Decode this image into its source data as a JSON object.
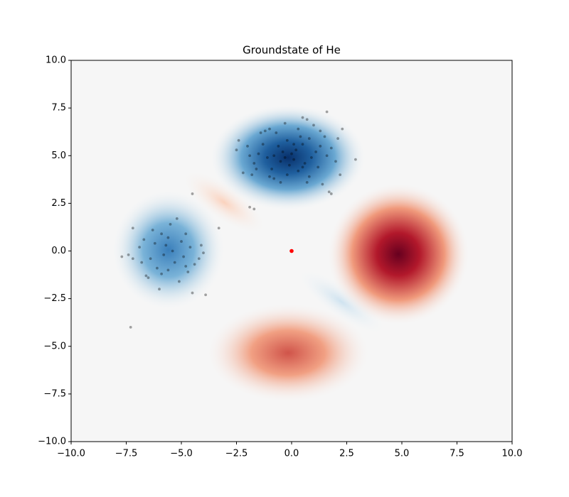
{
  "chart_data": {
    "type": "scatter",
    "title": "Groundstate of He",
    "xlim": [
      -10,
      10
    ],
    "ylim": [
      -10,
      10
    ],
    "xticks": [
      {
        "value": -10,
        "label": "−10.0"
      },
      {
        "value": -7.5,
        "label": "−7.5"
      },
      {
        "value": -5,
        "label": "−5.0"
      },
      {
        "value": -2.5,
        "label": "−2.5"
      },
      {
        "value": 0,
        "label": "0.0"
      },
      2.5,
      {
        "value": 5,
        "label": "5.0"
      },
      7.5,
      {
        "value": 10,
        "label": "10.0"
      }
    ],
    "yticks": [
      {
        "value": -10,
        "label": "−10.0"
      },
      {
        "value": -7.5,
        "label": "−7.5"
      },
      {
        "value": -5,
        "label": "−5.0"
      },
      {
        "value": -2.5,
        "label": "−2.5"
      },
      {
        "value": 0,
        "label": "0.0"
      },
      2.5,
      {
        "value": 5,
        "label": "5.0"
      },
      7.5,
      {
        "value": 10,
        "label": "10.0"
      }
    ],
    "series": [
      {
        "color": "#000000",
        "x": [
          -2.4,
          -2.5,
          -2.2,
          -1.8,
          -1.7,
          -1.5,
          -1.4,
          -1.2,
          -1.0,
          -1.3,
          -1.1,
          -0.9,
          -0.8,
          -0.6,
          -0.5,
          -0.4,
          -0.3,
          -0.2,
          -0.1,
          0.0,
          0.1,
          0.2,
          0.3,
          0.4,
          0.5,
          0.6,
          0.7,
          0.8,
          0.9,
          1.0,
          1.1,
          1.2,
          1.3,
          1.4,
          1.5,
          1.6,
          1.7,
          1.8,
          2.0,
          2.1,
          -0.7,
          -1.6,
          -0.2,
          0.3,
          -1.9,
          -2.0,
          0.8,
          -0.5,
          0.1,
          -0.8,
          0.5,
          -1.0,
          1.3,
          -0.3,
          0.7,
          2.9,
          2.3,
          2.2,
          1.6,
          0.5,
          1.8,
          -4.5,
          -1.9,
          -1.7,
          -3.3,
          -7.7,
          -7.4,
          -7.2,
          -7.2,
          -6.9,
          -6.7,
          -6.6,
          -6.4,
          -6.3,
          -6.2,
          -6.1,
          -6.0,
          -5.9,
          -5.8,
          -5.7,
          -5.6,
          -5.5,
          -5.4,
          -5.3,
          -5.2,
          -5.1,
          -5.0,
          -4.9,
          -4.8,
          -4.7,
          -4.6,
          -4.5,
          -4.4,
          -4.2,
          -4.1,
          -4.0,
          -3.9,
          -6.5,
          -5.9,
          -7.3,
          -6.8,
          -5.6,
          -4.8
        ],
        "values": [
          5.8,
          5.3,
          4.1,
          4.0,
          4.6,
          5.1,
          6.2,
          6.3,
          6.4,
          5.6,
          4.9,
          4.3,
          3.8,
          5.5,
          4.7,
          5.2,
          4.9,
          5.8,
          4.5,
          5.1,
          4.8,
          5.3,
          4.2,
          6.0,
          5.6,
          4.6,
          3.6,
          5.9,
          4.9,
          6.6,
          5.2,
          4.4,
          5.5,
          3.5,
          6.0,
          5.0,
          3.1,
          5.4,
          4.7,
          5.9,
          6.2,
          4.3,
          4.0,
          6.4,
          5.0,
          5.5,
          3.9,
          3.6,
          5.6,
          5.0,
          4.4,
          3.9,
          6.3,
          6.7,
          6.9,
          4.8,
          6.4,
          4.0,
          7.3,
          7.0,
          3.0,
          3.0,
          2.3,
          2.2,
          1.2,
          -0.3,
          -0.2,
          1.2,
          -0.4,
          0.2,
          0.6,
          -1.3,
          -0.4,
          1.1,
          0.4,
          -0.9,
          -2.0,
          0.9,
          -0.2,
          0.3,
          -1.0,
          1.4,
          0.0,
          -0.6,
          1.7,
          -1.6,
          0.5,
          -0.3,
          0.9,
          -1.1,
          0.2,
          -2.2,
          -0.7,
          -0.4,
          0.3,
          -0.1,
          -2.3,
          -1.4,
          -1.2,
          -4.0,
          -0.6,
          0.7,
          -0.8
        ]
      },
      {
        "color": "#ff0000",
        "x": [
          0
        ],
        "values": [
          0
        ]
      }
    ]
  }
}
